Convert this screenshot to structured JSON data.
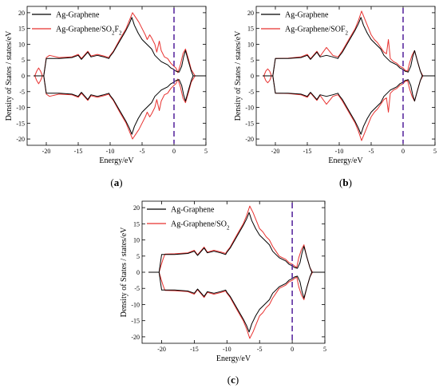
{
  "chart_data": [
    {
      "id": "a",
      "type": "line",
      "caption": "(a)",
      "xlabel": "Energy/eV",
      "ylabel": "Density of States / states/eV",
      "xlim": [
        -23,
        5
      ],
      "ylim": [
        -22,
        22
      ],
      "xticks": [
        -20,
        -15,
        -10,
        -5,
        0,
        5
      ],
      "yticks": [
        -20,
        -15,
        -10,
        -5,
        0,
        5,
        10,
        15,
        20
      ],
      "fermi_level": 0,
      "legend_position": "top-left",
      "series": [
        {
          "name": "Ag-Graphene",
          "color": "#000000",
          "x": [
            -22,
            -20.4,
            -20,
            -18,
            -16,
            -15,
            -14.5,
            -13.5,
            -13,
            -12,
            -11,
            -10.2,
            -10,
            -9.5,
            -8.5,
            -7.5,
            -7,
            -6.6,
            -6.2,
            -5.6,
            -5,
            -4.5,
            -3.5,
            -3,
            -2.5,
            -2,
            -1.5,
            -1,
            -0.5,
            0,
            0.3,
            0.8,
            1.2,
            1.5,
            1.8,
            2.2,
            2.7,
            3,
            5
          ],
          "y": [
            0,
            0,
            5.5,
            5.5,
            5.8,
            6.5,
            5.2,
            7.5,
            6.0,
            6.5,
            6.0,
            5.5,
            6.2,
            7.5,
            11,
            14.5,
            16.5,
            18.5,
            16,
            13.5,
            11.5,
            10.5,
            8.5,
            6.5,
            5.5,
            4.5,
            4,
            3.5,
            2.5,
            2,
            1.5,
            1.2,
            3,
            6,
            8,
            5,
            1.5,
            0,
            0
          ]
        },
        {
          "name": "Ag-Graphene/SO2F2",
          "color": "#e8312f",
          "x": [
            -22,
            -21.8,
            -21.5,
            -21.2,
            -20.9,
            -20.6,
            -20.4,
            -20,
            -19.5,
            -18,
            -16,
            -15,
            -14.5,
            -13.5,
            -13,
            -12,
            -11,
            -10.2,
            -10,
            -9.5,
            -8.5,
            -7.5,
            -7,
            -6.5,
            -6,
            -5.5,
            -5,
            -4.5,
            -4.2,
            -3.8,
            -3.5,
            -3,
            -2.7,
            -2.3,
            -2,
            -1.5,
            -1,
            -0.5,
            0,
            0.3,
            0.6,
            1,
            1.4,
            1.8,
            2.3,
            2.7,
            3.3,
            5
          ],
          "y": [
            0,
            0,
            1.5,
            2.5,
            1.5,
            0,
            0,
            5.8,
            6.5,
            5.8,
            6.0,
            6.8,
            5.5,
            7.8,
            6.3,
            6.8,
            6.3,
            5.8,
            6.5,
            7.8,
            11.5,
            15,
            17.5,
            20,
            18.5,
            17,
            15,
            13,
            11.5,
            13,
            12,
            10,
            7.5,
            11,
            8,
            6,
            5.5,
            4,
            3,
            2.5,
            1,
            3.5,
            7,
            8.5,
            5,
            2,
            0,
            0
          ]
        }
      ]
    },
    {
      "id": "b",
      "type": "line",
      "caption": "(b)",
      "xlabel": "Energy/eV",
      "ylabel": "Density of States / states/eV",
      "xlim": [
        -23,
        5
      ],
      "ylim": [
        -22,
        22
      ],
      "xticks": [
        -20,
        -15,
        -10,
        -5,
        0,
        5
      ],
      "yticks": [
        -20,
        -15,
        -10,
        -5,
        0,
        5,
        10,
        15,
        20
      ],
      "fermi_level": 0,
      "legend_position": "top-left",
      "series": [
        {
          "name": "Ag-Graphene",
          "color": "#000000",
          "x": [
            -22,
            -20.4,
            -20,
            -18,
            -16,
            -15,
            -14.5,
            -13.5,
            -13,
            -12,
            -11,
            -10.2,
            -10,
            -9.5,
            -8.5,
            -7.5,
            -7,
            -6.6,
            -6.2,
            -5.6,
            -5,
            -4.5,
            -3.5,
            -3,
            -2.5,
            -2,
            -1.5,
            -1,
            -0.5,
            0,
            0.3,
            0.8,
            1.2,
            1.5,
            1.8,
            2.2,
            2.7,
            3,
            5
          ],
          "y": [
            0,
            0,
            5.5,
            5.5,
            5.8,
            6.5,
            5.2,
            7.5,
            6.0,
            6.5,
            6.0,
            5.5,
            6.2,
            7.5,
            11,
            14.5,
            16.5,
            18.5,
            16,
            13.5,
            11.5,
            10.5,
            8.5,
            6.5,
            5.5,
            4.5,
            4,
            3.5,
            2.5,
            2,
            1.5,
            1.2,
            3,
            6,
            8,
            5,
            1.5,
            0,
            0
          ]
        },
        {
          "name": "Ag-Graphene/SOF2",
          "color": "#e8312f",
          "x": [
            -22,
            -21.8,
            -21.5,
            -21.2,
            -20.9,
            -20.6,
            -20.4,
            -20,
            -18,
            -16,
            -15,
            -14.5,
            -13.5,
            -13,
            -12,
            -11,
            -10.2,
            -10,
            -9.5,
            -8.5,
            -7.5,
            -7,
            -6.5,
            -6,
            -5.5,
            -5,
            -4.5,
            -4,
            -3.5,
            -3,
            -2.6,
            -2.3,
            -2,
            -1.5,
            -1,
            -0.5,
            0,
            0.3,
            0.7,
            1,
            1.4,
            1.8,
            2.2,
            2.7,
            3.1,
            5
          ],
          "y": [
            0,
            0,
            1.5,
            2.2,
            1.5,
            0,
            0,
            5.5,
            5.6,
            6.0,
            6.8,
            5.4,
            7.8,
            6.2,
            9,
            6.5,
            6,
            6.5,
            8,
            11.5,
            15,
            17.5,
            20.5,
            18,
            15.5,
            13,
            11.5,
            10.5,
            9,
            7.5,
            7,
            11.5,
            5.5,
            4.5,
            4,
            3,
            2.5,
            1.8,
            1.5,
            4,
            6.5,
            8,
            5,
            1.5,
            0,
            0
          ]
        }
      ]
    },
    {
      "id": "c",
      "type": "line",
      "caption": "(c)",
      "xlabel": "Energy/eV",
      "ylabel": "Density of States / states/eV",
      "xlim": [
        -23,
        5
      ],
      "ylim": [
        -22,
        22
      ],
      "xticks": [
        -20,
        -15,
        -10,
        -5,
        0,
        5
      ],
      "yticks": [
        -20,
        -15,
        -10,
        -5,
        0,
        5,
        10,
        15,
        20
      ],
      "fermi_level": 0,
      "legend_position": "top-left",
      "series": [
        {
          "name": "Ag-Graphene",
          "color": "#000000",
          "x": [
            -22,
            -20.4,
            -20,
            -18,
            -16,
            -15,
            -14.5,
            -13.5,
            -13,
            -12,
            -11,
            -10.2,
            -10,
            -9.5,
            -8.5,
            -7.5,
            -7,
            -6.6,
            -6.2,
            -5.6,
            -5,
            -4.5,
            -3.5,
            -3,
            -2.5,
            -2,
            -1.5,
            -1,
            -0.5,
            0,
            0.3,
            0.8,
            1.2,
            1.5,
            1.8,
            2.2,
            2.7,
            3,
            5
          ],
          "y": [
            0,
            0,
            5.5,
            5.5,
            5.8,
            6.5,
            5.2,
            7.5,
            6.0,
            6.5,
            6.0,
            5.5,
            6.2,
            7.5,
            11,
            14.5,
            16.5,
            18.5,
            16,
            13.5,
            11.5,
            10.5,
            8.5,
            6.5,
            5.5,
            4.5,
            4,
            3.5,
            2.5,
            2,
            1.5,
            1.2,
            3,
            6,
            8,
            5,
            1.5,
            0,
            0
          ]
        },
        {
          "name": "Ag-Graphene/SO2",
          "color": "#e8312f",
          "x": [
            -22,
            -20.4,
            -20.1,
            -19.8,
            -19.5,
            -18,
            -16,
            -15,
            -14.5,
            -13.5,
            -13,
            -12,
            -11,
            -10.2,
            -10,
            -9.5,
            -8.5,
            -7.5,
            -7,
            -6.5,
            -6,
            -5.5,
            -5,
            -4.5,
            -4,
            -3.5,
            -3,
            -2.5,
            -2,
            -1.5,
            -1,
            -0.5,
            0,
            0.3,
            0.7,
            1,
            1.4,
            1.8,
            2.2,
            2.7,
            3.1,
            5
          ],
          "y": [
            0,
            0,
            2,
            4,
            5.6,
            5.7,
            6.0,
            6.8,
            5.4,
            7.8,
            6.2,
            6.8,
            6.3,
            5.8,
            6.5,
            7.8,
            11.5,
            15,
            17.5,
            20.5,
            18.5,
            16,
            13.5,
            12.5,
            11,
            10,
            8,
            6.5,
            5,
            4.5,
            4,
            3,
            2.5,
            2,
            1.5,
            4.5,
            7,
            8.5,
            5,
            1.5,
            0,
            0
          ]
        }
      ]
    }
  ]
}
